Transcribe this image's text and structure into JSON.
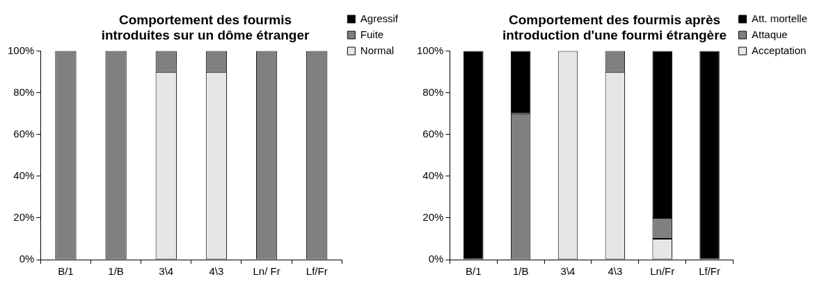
{
  "chart_data": [
    {
      "type": "bar",
      "title": "Comportement des fourmis introduites sur un dôme étranger",
      "stacked": true,
      "legend": "top right",
      "categories": [
        "B/1",
        "1/B",
        "3\\4",
        "4\\3",
        "Ln/ Fr",
        "Lf/Fr"
      ],
      "ylim": [
        0,
        100
      ],
      "yticks": [
        {
          "value": 0,
          "label": "0%"
        },
        {
          "value": 20,
          "label": "20%"
        },
        {
          "value": 40,
          "label": "40%"
        },
        {
          "value": 60,
          "label": "60%"
        },
        {
          "value": 80,
          "label": "80%"
        },
        {
          "value": 100,
          "label": "100%"
        }
      ],
      "series": [
        {
          "name": "Normal",
          "color": "#e6e6e6",
          "values": [
            0,
            0,
            90,
            90,
            0,
            0
          ]
        },
        {
          "name": "Fuite",
          "color": "#808080",
          "values": [
            100,
            100,
            10,
            10,
            100,
            100
          ]
        },
        {
          "name": "Agressif",
          "color": "#000000",
          "values": [
            0,
            0,
            0,
            0,
            0,
            0
          ]
        }
      ]
    },
    {
      "type": "bar",
      "title": "Comportement des fourmis après introduction d'une fourmi étrangère",
      "stacked": true,
      "legend": "top right",
      "categories": [
        "B/1",
        "1/B",
        "3\\4",
        "4\\3",
        "Ln/Fr",
        "Lf/Fr"
      ],
      "ylim": [
        0,
        100
      ],
      "yticks": [
        {
          "value": 0,
          "label": "0%"
        },
        {
          "value": 20,
          "label": "20%"
        },
        {
          "value": 40,
          "label": "40%"
        },
        {
          "value": 60,
          "label": "60%"
        },
        {
          "value": 80,
          "label": "80%"
        },
        {
          "value": 100,
          "label": "100%"
        }
      ],
      "series": [
        {
          "name": "Acceptation",
          "color": "#e6e6e6",
          "values": [
            0,
            0,
            100,
            90,
            10,
            0
          ]
        },
        {
          "name": "Attaque",
          "color": "#808080",
          "values": [
            0,
            70,
            0,
            10,
            10,
            0
          ]
        },
        {
          "name": "Att. mortelle",
          "color": "#000000",
          "values": [
            100,
            30,
            0,
            0,
            80,
            100
          ]
        }
      ]
    }
  ]
}
